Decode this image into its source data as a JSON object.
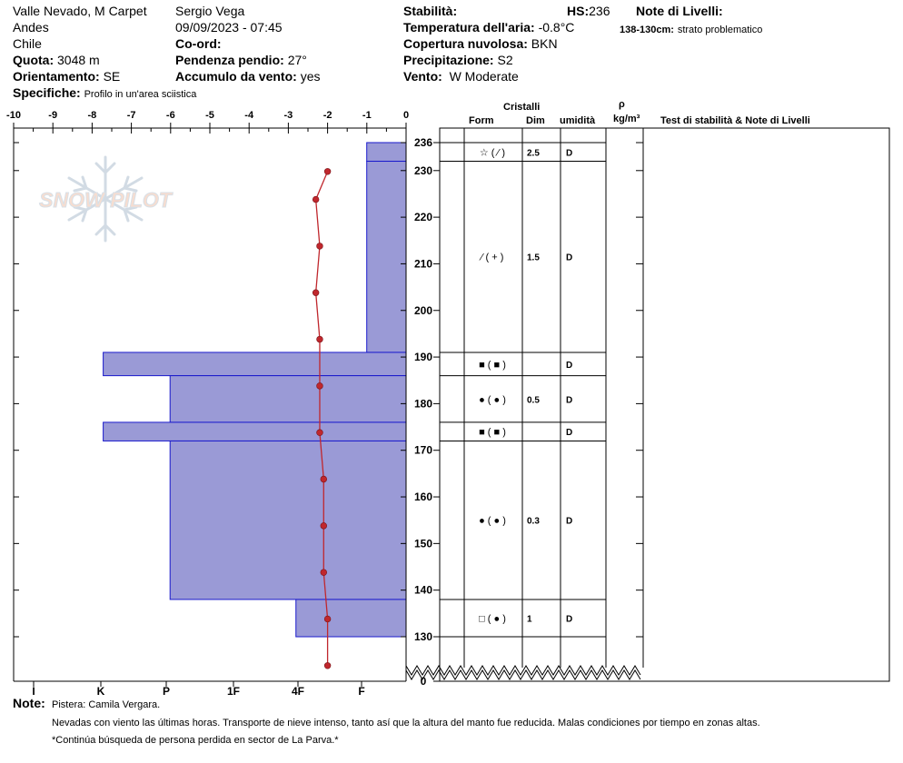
{
  "header": {
    "location": "Valle Nevado, M Carpet",
    "range": "Andes",
    "country": "Chile",
    "observer": "Sergio Vega",
    "datetime": "09/09/2023 - 07:45",
    "quota_label": "Quota:",
    "quota_value": "3048 m",
    "orient_label": "Orientamento:",
    "orient_value": "SE",
    "coord_label": "Co-ord:",
    "slope_label": "Pendenza pendio:",
    "slope_value": "27°",
    "wind_load_label": "Accumulo da vento:",
    "wind_load_value": "yes",
    "spec_label": "Specifiche:",
    "spec_value": "Profilo in un'area sciistica",
    "stability_label": "Stabilità:",
    "hs_label": "HS:",
    "hs_value": "236",
    "air_temp_label": "Temperatura dell'aria:",
    "air_temp_value": "-0.8°C",
    "cloud_label": "Copertura nuvolosa:",
    "cloud_value": "BKN",
    "precip_label": "Precipitazione:",
    "precip_value": "S2",
    "wind_label": "Vento:",
    "wind_value": "W Moderate",
    "layer_notes_label": "Note di Livelli:",
    "layer_note_range": "138-130cm:",
    "layer_note_text": "strato problematico"
  },
  "watermark": "SNOW PILOT",
  "table_headers": {
    "crystals": "Cristalli",
    "form": "Form",
    "dim": "Dim",
    "humidity": "umidità",
    "rho": "ρ",
    "density_unit": "kg/m³",
    "stability_notes": "Test di stabilità & Note di Livelli"
  },
  "notes": {
    "label": "Note:",
    "line1": "Pistera: Camila Vergara.",
    "line2": "Nevadas con viento las últimas horas. Transporte de nieve intenso, tanto así que la altura del manto fue reducida. Malas condiciones por tiempo en zonas altas.",
    "line3": "*Continúa búsqueda de persona perdida en sector de La Parva.*"
  },
  "chart_data": {
    "type": "snow-profile",
    "temperature_axis": {
      "ticks": [
        "-10",
        "-9",
        "-8",
        "-7",
        "-6",
        "-5",
        "-4",
        "-3",
        "-2",
        "-1",
        "0"
      ],
      "range": [
        -10,
        0
      ]
    },
    "hardness_axis": {
      "ticks": [
        "I",
        "K",
        "P",
        "1F",
        "4F",
        "F"
      ]
    },
    "height_axis": {
      "ticks": [
        "236",
        "230",
        "220",
        "210",
        "200",
        "190",
        "180",
        "170",
        "160",
        "150",
        "140",
        "130",
        "0"
      ]
    },
    "temperature_profile": [
      {
        "height": 230,
        "temp": -2.0
      },
      {
        "height": 224,
        "temp": -2.3
      },
      {
        "height": 214,
        "temp": -2.2
      },
      {
        "height": 204,
        "temp": -2.3
      },
      {
        "height": 194,
        "temp": -2.2
      },
      {
        "height": 184,
        "temp": -2.2
      },
      {
        "height": 174,
        "temp": -2.2
      },
      {
        "height": 164,
        "temp": -2.1
      },
      {
        "height": 154,
        "temp": -2.1
      },
      {
        "height": 144,
        "temp": -2.1
      },
      {
        "height": 134,
        "temp": -2.0
      },
      {
        "height": 124,
        "temp": -2.0
      }
    ],
    "layers": [
      {
        "top": 236,
        "bottom": 232,
        "hardness_index": 1,
        "form": "☆ ( ⁄ )",
        "size": "2.5",
        "wetness": "D"
      },
      {
        "top": 232,
        "bottom": 191,
        "hardness_index": 1,
        "form": "⁄ ( + )",
        "size": "1.5",
        "wetness": "D"
      },
      {
        "top": 191,
        "bottom": 186,
        "hardness_index": 7.7,
        "form": "■ ( ■ )",
        "size": "",
        "wetness": "D"
      },
      {
        "top": 186,
        "bottom": 176,
        "hardness_index": 6,
        "form": "● ( ● )",
        "size": "0.5",
        "wetness": "D"
      },
      {
        "top": 176,
        "bottom": 172,
        "hardness_index": 7.7,
        "form": "■ ( ■ )",
        "size": "",
        "wetness": "D"
      },
      {
        "top": 172,
        "bottom": 138,
        "hardness_index": 6,
        "form": "● ( ● )",
        "size": "0.3",
        "wetness": "D"
      },
      {
        "top": 138,
        "bottom": 130,
        "hardness_index": 2.8,
        "form": "□ ( ● )",
        "size": "1",
        "wetness": "D"
      }
    ]
  }
}
